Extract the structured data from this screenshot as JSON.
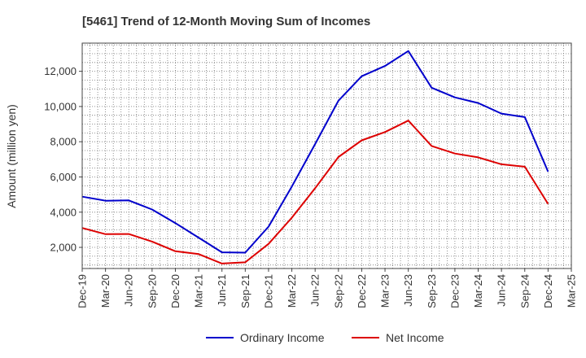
{
  "chart_data": {
    "type": "line",
    "title": "[5461]  Trend of 12-Month Moving Sum of Incomes",
    "xlabel": "",
    "ylabel": "Amount (million yen)",
    "categories": [
      "Dec-19",
      "Mar-20",
      "Jun-20",
      "Sep-20",
      "Dec-20",
      "Mar-21",
      "Jun-21",
      "Sep-21",
      "Dec-21",
      "Mar-22",
      "Jun-22",
      "Sep-22",
      "Dec-22",
      "Mar-23",
      "Jun-23",
      "Sep-23",
      "Dec-23",
      "Mar-24",
      "Jun-24",
      "Sep-24",
      "Dec-24",
      "Mar-25"
    ],
    "yticks": [
      2000,
      4000,
      6000,
      8000,
      10000,
      12000
    ],
    "ytick_labels": [
      "2,000",
      "4,000",
      "6,000",
      "8,000",
      "10,000",
      "12,000"
    ],
    "ylim": [
      800,
      13600
    ],
    "grid": true,
    "legend_position": "bottom-center",
    "series": [
      {
        "name": "Ordinary Income",
        "color": "#0000cc",
        "values": [
          4880,
          4650,
          4670,
          4150,
          3380,
          2550,
          1720,
          1700,
          3180,
          5460,
          7870,
          10330,
          11720,
          12300,
          13150,
          11070,
          10520,
          10200,
          9600,
          9400,
          6300,
          null
        ]
      },
      {
        "name": "Net Income",
        "color": "#dd0000",
        "values": [
          3100,
          2750,
          2760,
          2330,
          1780,
          1620,
          1080,
          1150,
          2200,
          3690,
          5360,
          7130,
          8080,
          8550,
          9200,
          7760,
          7330,
          7110,
          6720,
          6580,
          4470,
          null
        ]
      }
    ]
  }
}
